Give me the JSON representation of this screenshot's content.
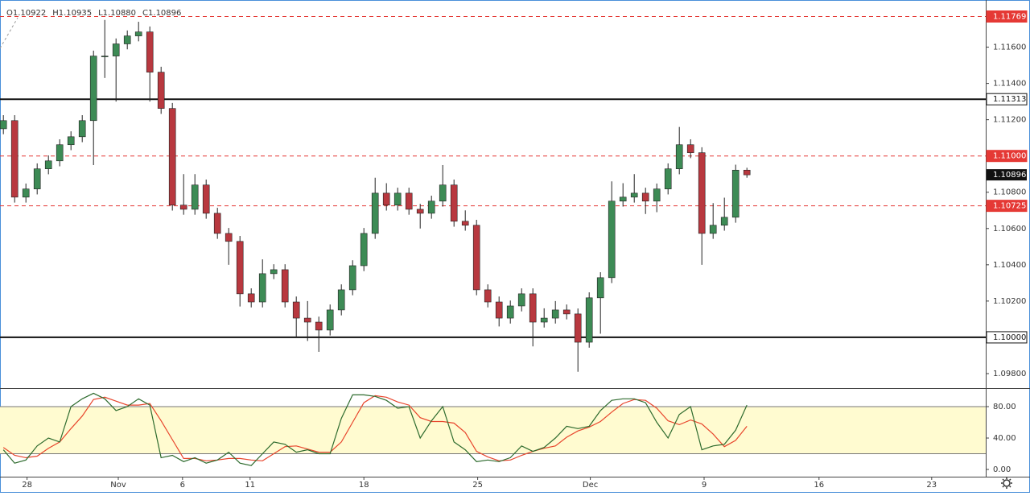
{
  "chart_data": {
    "type": "candlestick",
    "legend_ohlc": [
      "O1.10922",
      "H1.10935",
      "L1.10880",
      "C1.10896"
    ],
    "xlim": [
      -0.3,
      87.2
    ],
    "xticks": [
      {
        "value": 2.1,
        "label": "28"
      },
      {
        "value": 10.2,
        "label": "Nov"
      },
      {
        "value": 15.9,
        "label": "6"
      },
      {
        "value": 21.9,
        "label": "11"
      },
      {
        "value": 32,
        "label": "18"
      },
      {
        "value": 42.1,
        "label": "25"
      },
      {
        "value": 52.1,
        "label": "Dec"
      },
      {
        "value": 62.2,
        "label": "9"
      },
      {
        "value": 72.4,
        "label": "16"
      },
      {
        "value": 82.4,
        "label": "23"
      }
    ],
    "ylim": [
      1.0972,
      1.1186
    ],
    "yticks": [
      {
        "value": 1.098,
        "label": "1.09800"
      },
      {
        "value": 1.1,
        "label": "1.10000"
      },
      {
        "value": 1.102,
        "label": "1.10200"
      },
      {
        "value": 1.104,
        "label": "1.10400"
      },
      {
        "value": 1.106,
        "label": "1.10600"
      },
      {
        "value": 1.108,
        "label": "1.10800"
      },
      {
        "value": 1.112,
        "label": "1.11200"
      },
      {
        "value": 1.114,
        "label": "1.11400"
      },
      {
        "value": 1.116,
        "label": "1.11600"
      }
    ],
    "up_color": "#3d8b55",
    "down_color": "#b8383f",
    "open": [
      1.1115,
      1.11195,
      1.10773,
      1.10818,
      1.10929,
      1.10973,
      1.11062,
      1.11106,
      1.11195,
      1.11551,
      1.11551,
      1.11618,
      1.11662,
      1.11684,
      1.11462,
      1.11262,
      1.10729,
      1.10706,
      1.1084,
      1.10684,
      1.10573,
      1.10529,
      1.1024,
      1.10195,
      1.10351,
      1.10373,
      1.10195,
      1.10106,
      1.10084,
      1.1004,
      1.10151,
      1.10262,
      1.10395,
      1.10573,
      1.10795,
      1.10729,
      1.10795,
      1.10706,
      1.10684,
      1.10751,
      1.1084,
      1.1064,
      1.10618,
      1.10262,
      1.10195,
      1.10106,
      1.10173,
      1.1024,
      1.10084,
      1.10106,
      1.10151,
      1.10129,
      1.09973,
      1.10218,
      1.10329,
      1.10751,
      1.10773,
      1.10795,
      1.10751,
      1.10818,
      1.10929,
      1.11062,
      1.11018,
      1.10573,
      1.10618,
      1.10662,
      1.10922
    ],
    "high": [
      1.11225,
      1.11225,
      1.10848,
      1.10959,
      1.11003,
      1.11092,
      1.11136,
      1.11225,
      1.11581,
      1.1175,
      1.11648,
      1.11692,
      1.1174,
      1.11714,
      1.11492,
      1.11292,
      1.109,
      1.109,
      1.1087,
      1.10714,
      1.10603,
      1.10559,
      1.1027,
      1.1043,
      1.10403,
      1.10403,
      1.10225,
      1.102,
      1.10114,
      1.10181,
      1.10292,
      1.10425,
      1.10603,
      1.1088,
      1.1085,
      1.10825,
      1.10825,
      1.10736,
      1.10781,
      1.1095,
      1.1087,
      1.107,
      1.10648,
      1.10292,
      1.10225,
      1.10203,
      1.1027,
      1.1027,
      1.1016,
      1.102,
      1.10181,
      1.10159,
      1.10248,
      1.10359,
      1.1086,
      1.1085,
      1.109,
      1.10825,
      1.10848,
      1.10959,
      1.1116,
      1.11092,
      1.11048,
      1.1074,
      1.1077,
      1.10952,
      1.10935
    ],
    "low": [
      1.1112,
      1.10743,
      1.10743,
      1.10788,
      1.10899,
      1.10943,
      1.11032,
      1.11076,
      1.1095,
      1.1143,
      1.113,
      1.11588,
      1.11632,
      1.113,
      1.11232,
      1.10699,
      1.10676,
      1.10676,
      1.10654,
      1.10543,
      1.104,
      1.1017,
      1.10165,
      1.10165,
      1.10321,
      1.10165,
      1.1,
      1.0998,
      1.0992,
      1.1001,
      1.10121,
      1.10232,
      1.10365,
      1.10543,
      1.10699,
      1.10699,
      1.10676,
      1.106,
      1.10654,
      1.10721,
      1.1061,
      1.10588,
      1.10232,
      1.10165,
      1.1006,
      1.10076,
      1.10143,
      1.0995,
      1.10054,
      1.10076,
      1.10099,
      1.0981,
      1.09943,
      1.1002,
      1.10299,
      1.10721,
      1.10743,
      1.1068,
      1.1069,
      1.10788,
      1.10899,
      1.10988,
      1.104,
      1.10543,
      1.10588,
      1.10632,
      1.1088
    ],
    "close": [
      1.11195,
      1.10773,
      1.10818,
      1.10929,
      1.10973,
      1.11062,
      1.11106,
      1.11195,
      1.11551,
      1.11551,
      1.11618,
      1.11662,
      1.11684,
      1.11462,
      1.11262,
      1.10729,
      1.10706,
      1.1084,
      1.10684,
      1.10573,
      1.10529,
      1.1024,
      1.10195,
      1.10351,
      1.10373,
      1.10195,
      1.10106,
      1.10084,
      1.1004,
      1.10151,
      1.10262,
      1.10395,
      1.10573,
      1.10795,
      1.10729,
      1.10795,
      1.10706,
      1.10684,
      1.10751,
      1.1084,
      1.1064,
      1.10618,
      1.10262,
      1.10195,
      1.10106,
      1.10173,
      1.1024,
      1.10084,
      1.10106,
      1.10151,
      1.10129,
      1.09973,
      1.10218,
      1.10329,
      1.10751,
      1.10773,
      1.10795,
      1.10751,
      1.10818,
      1.10929,
      1.11062,
      1.11018,
      1.10573,
      1.10618,
      1.10662,
      1.10922,
      1.10896
    ],
    "levels": [
      {
        "value": 1.11769,
        "style": "dashed",
        "color": "#e53935"
      },
      {
        "value": 1.11313,
        "style": "solid",
        "color": "#111111"
      },
      {
        "value": 1.11,
        "label": "1.11000",
        "style": "dashed",
        "color": "#e53935"
      },
      {
        "value": 1.10725,
        "style": "dashed",
        "color": "#e53935"
      },
      {
        "value": 1.1,
        "label": "1.10000",
        "style": "solid",
        "color": "#111111"
      }
    ],
    "last_price": 1.10896,
    "indicator": {
      "type": "line",
      "ylim": [
        -9.2,
        103.6
      ],
      "yticks": [
        {
          "value": 0,
          "label": "0.00"
        },
        {
          "value": 40,
          "label": "40.00"
        },
        {
          "value": 80,
          "label": "80.00"
        }
      ],
      "band": [
        20,
        80
      ],
      "band_color": "#fffbd0",
      "k_color": "#2e6b2e",
      "d_color": "#e8452c",
      "k_values": [
        25,
        8,
        12,
        30,
        40,
        35,
        80,
        90,
        97,
        90,
        75,
        80,
        90,
        82,
        15,
        18,
        10,
        15,
        8,
        12,
        22,
        8,
        5,
        20,
        35,
        32,
        22,
        25,
        20,
        20,
        65,
        95,
        95,
        93,
        88,
        78,
        80,
        40,
        62,
        80,
        35,
        25,
        10,
        12,
        10,
        15,
        30,
        23,
        28,
        40,
        55,
        52,
        55,
        75,
        88,
        90,
        90,
        85,
        60,
        40,
        70,
        80,
        25,
        30,
        32,
        50,
        82
      ],
      "d_values": [
        28,
        18,
        15,
        17,
        27,
        35,
        52,
        68,
        89,
        92,
        87,
        82,
        82,
        84,
        62,
        38,
        14,
        14,
        11,
        12,
        14,
        14,
        12,
        11,
        20,
        29,
        30,
        26,
        22,
        22,
        35,
        60,
        85,
        94,
        92,
        86,
        82,
        66,
        61,
        61,
        59,
        47,
        23,
        16,
        11,
        12,
        18,
        23,
        27,
        30,
        41,
        49,
        54,
        61,
        73,
        84,
        89,
        88,
        78,
        62,
        57,
        63,
        58,
        45,
        29,
        37,
        55
      ]
    }
  }
}
